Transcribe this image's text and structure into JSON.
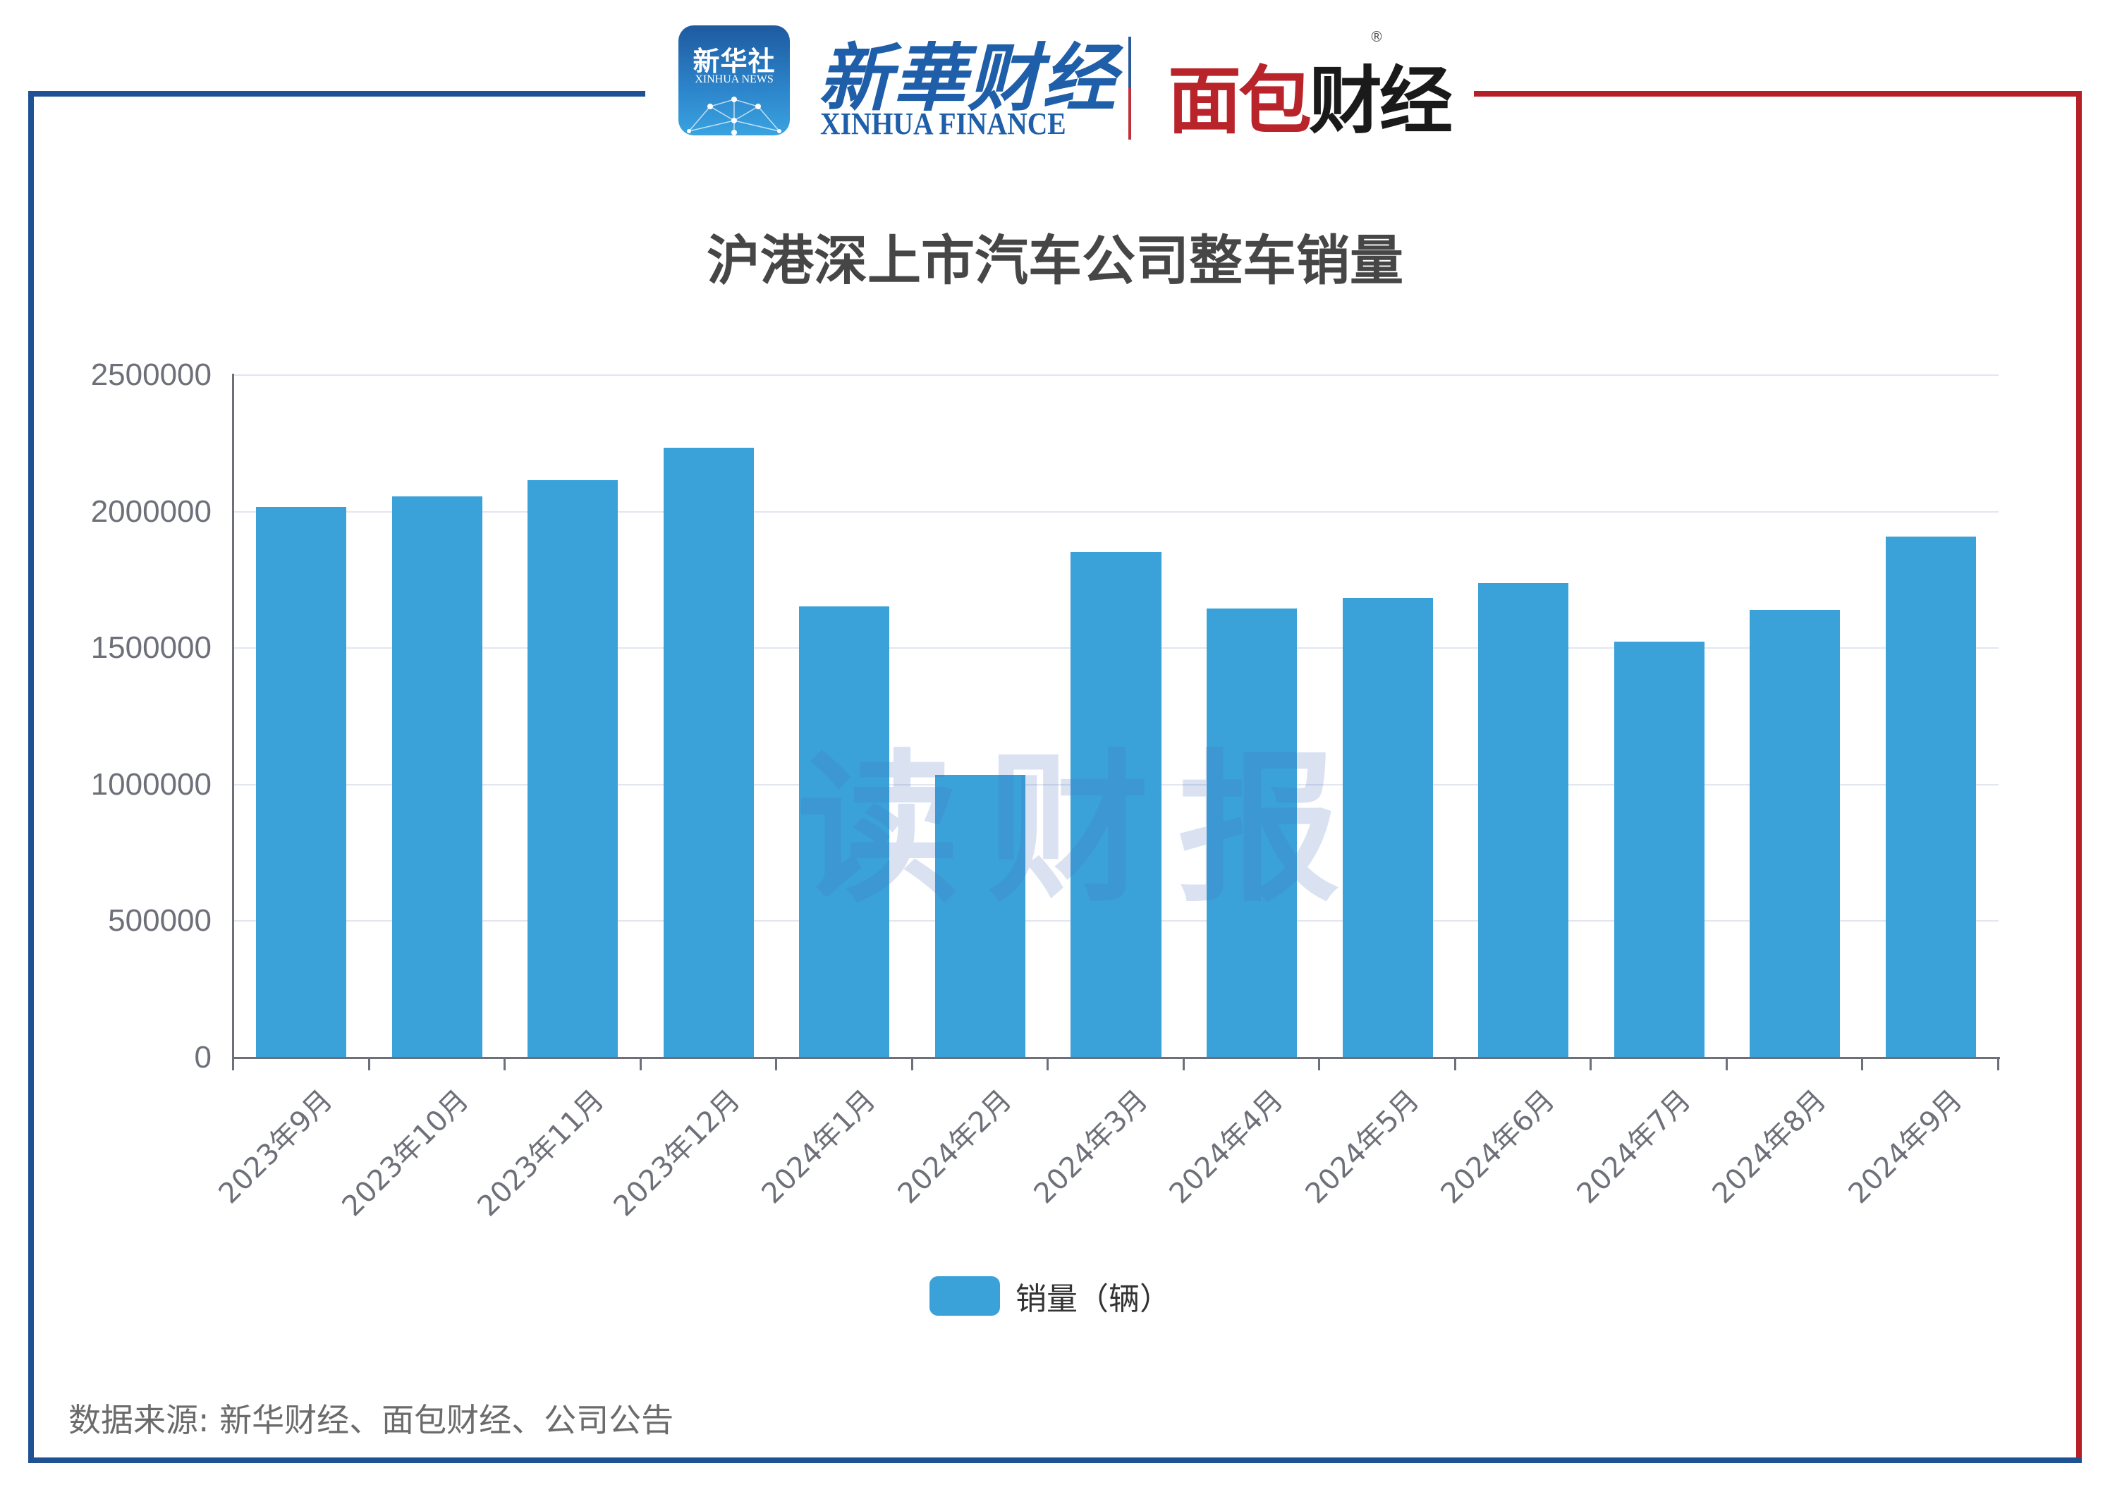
{
  "header": {
    "app_icon": {
      "cn": "新华社",
      "en": "XINHUA NEWS"
    },
    "xinhua_finance": {
      "cn_part1": "新華",
      "cn_part2": "财",
      "cn_part3": "经",
      "en": "XINHUA FINANCE"
    },
    "mianbao_finance": {
      "red": "面包",
      "black": "财经",
      "registered": "®"
    }
  },
  "frame": {
    "left_color": "#1f5295",
    "right_color": "#b71f27"
  },
  "watermark": "读财报",
  "source": "数据来源: 新华财经、面包财经、公司公告",
  "chart_data": {
    "type": "bar",
    "title": "沪港深上市汽车公司整车销量",
    "xlabel": "",
    "ylabel": "",
    "categories": [
      "2023年9月",
      "2023年10月",
      "2023年11月",
      "2023年12月",
      "2024年1月",
      "2024年2月",
      "2024年3月",
      "2024年4月",
      "2024年5月",
      "2024年6月",
      "2024年7月",
      "2024年8月",
      "2024年9月"
    ],
    "series": [
      {
        "name": "销量（辆）",
        "color": "#3aa2d9",
        "values": [
          2018000,
          2056000,
          2116000,
          2234000,
          1652000,
          1036000,
          1851000,
          1645000,
          1685000,
          1737000,
          1524000,
          1641000,
          1908000
        ]
      }
    ],
    "yticks": [
      "0",
      "500000",
      "1000000",
      "1500000",
      "2000000",
      "2500000"
    ],
    "ylim": [
      0,
      2500000
    ],
    "grid": true,
    "legend_position": "bottom-center"
  }
}
